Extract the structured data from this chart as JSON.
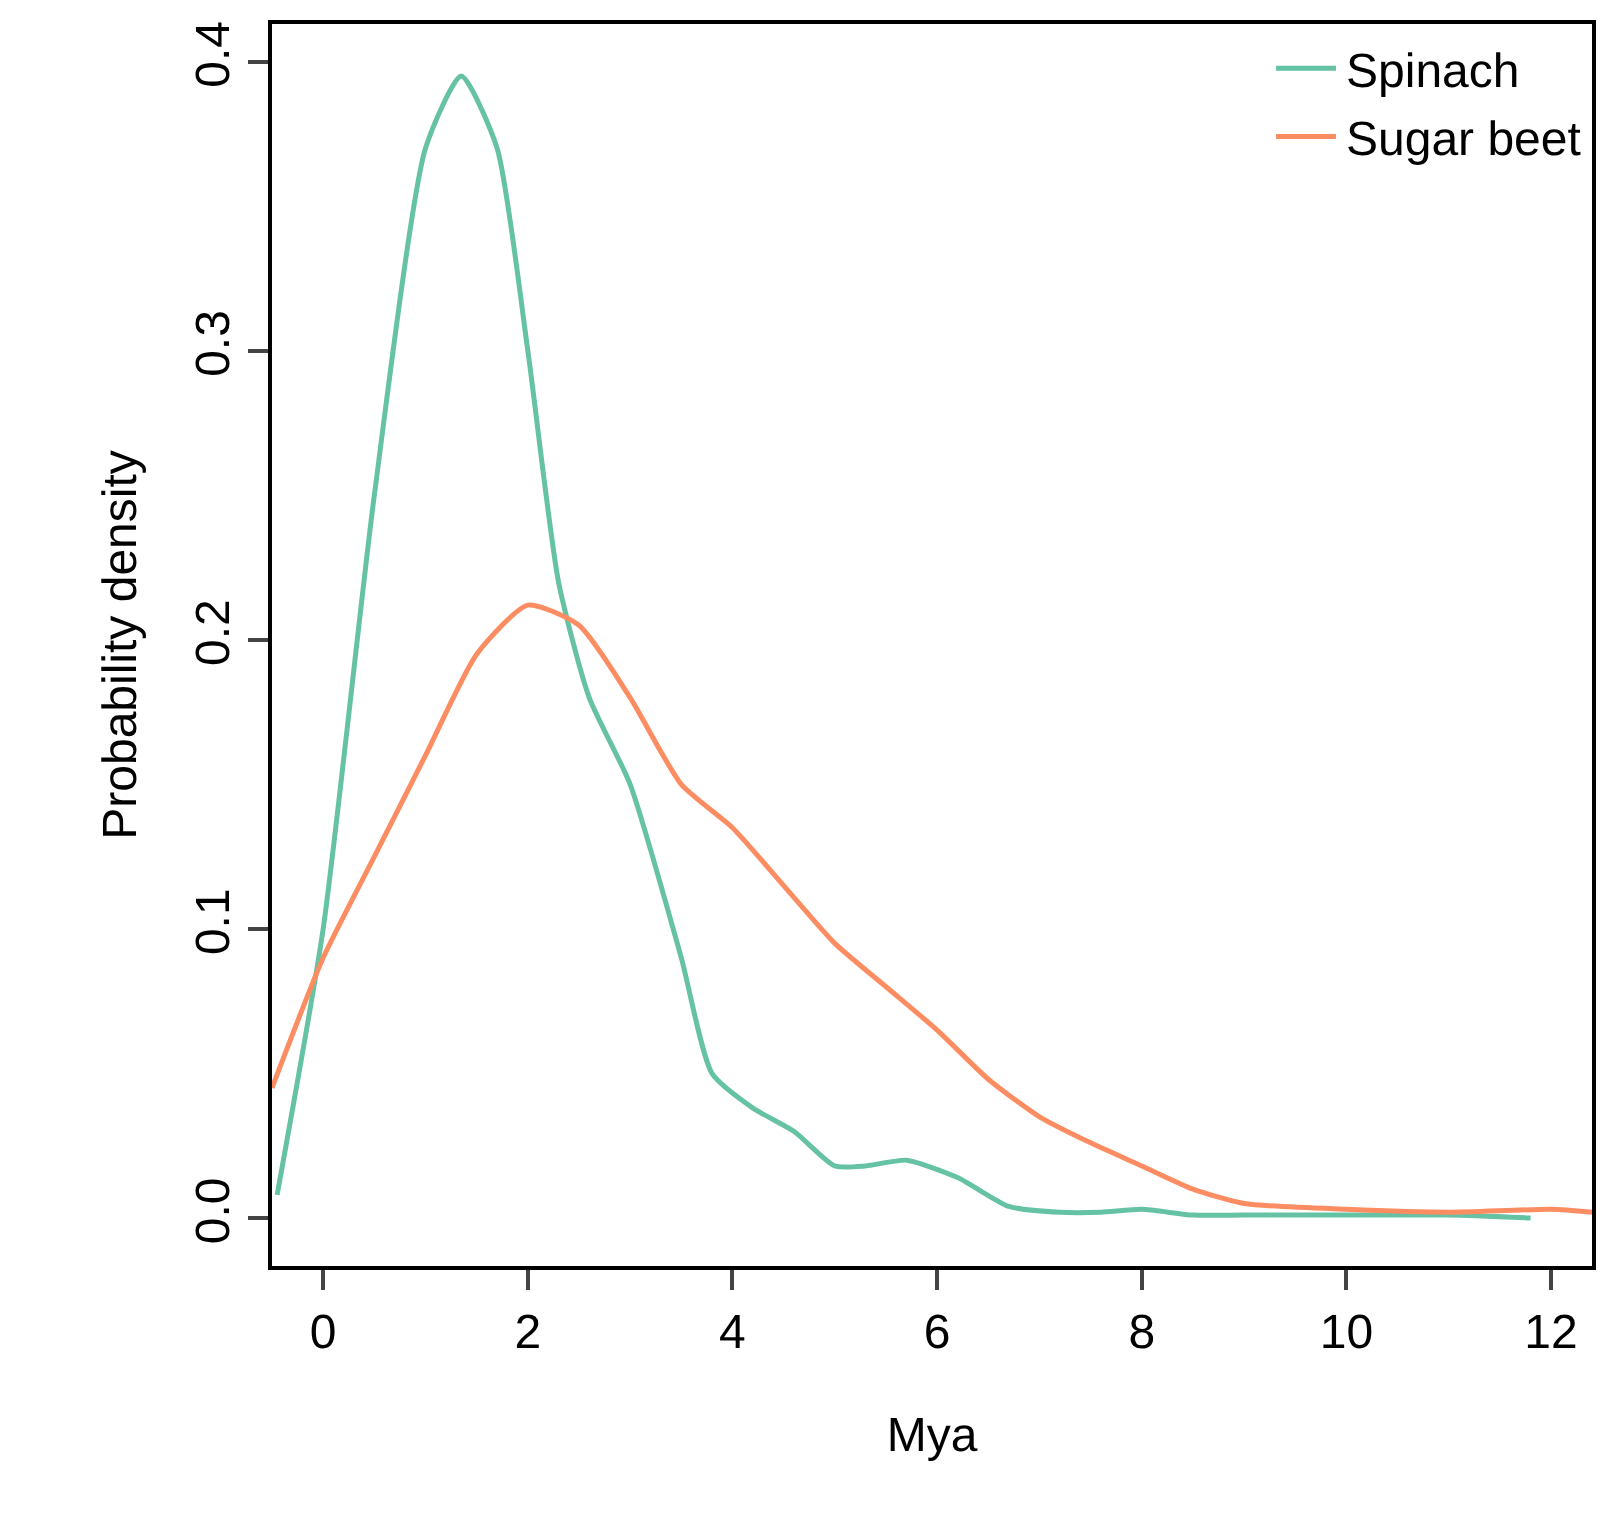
{
  "chart_data": {
    "type": "line",
    "xlabel": "Mya",
    "ylabel": "Probability density",
    "xlim": [
      -0.5,
      12.4
    ],
    "ylim": [
      -0.0166,
      0.413
    ],
    "xticks": [
      0,
      2,
      4,
      6,
      8,
      10,
      12
    ],
    "yticks": [
      {
        "value": 0,
        "label": "0.0"
      },
      0.1,
      0.2,
      0.3,
      0.4
    ],
    "grid": false,
    "legend": "top right",
    "marker": "none",
    "line_style": "solid",
    "series": [
      {
        "name": "Spinach",
        "color": "#66c2a5",
        "x": [
          -0.45,
          0,
          0.5,
          1.0,
          1.35,
          1.7,
          2.0,
          2.3,
          2.6,
          3.0,
          3.5,
          3.8,
          4.2,
          4.6,
          5.0,
          5.3,
          5.7,
          6.2,
          6.7,
          7.2,
          7.6,
          8.0,
          8.5,
          9.0,
          10.0,
          11.0,
          11.8
        ],
        "values": [
          0.008,
          0.1,
          0.25,
          0.37,
          0.395,
          0.37,
          0.3,
          0.22,
          0.18,
          0.15,
          0.09,
          0.05,
          0.038,
          0.03,
          0.018,
          0.018,
          0.02,
          0.014,
          0.004,
          0.002,
          0.002,
          0.003,
          0.001,
          0.001,
          0.001,
          0.001,
          0.0
        ]
      },
      {
        "name": "Sugar beet",
        "color": "#fc8d62",
        "x": [
          -0.5,
          0,
          0.5,
          1.0,
          1.5,
          2.0,
          2.5,
          3.0,
          3.5,
          4.0,
          4.5,
          5.0,
          5.5,
          6.0,
          6.5,
          7.0,
          7.5,
          8.0,
          8.5,
          9.0,
          10.0,
          11.0,
          12.0,
          12.4
        ],
        "values": [
          0.045,
          0.09,
          0.125,
          0.16,
          0.195,
          0.212,
          0.205,
          0.18,
          0.15,
          0.135,
          0.115,
          0.095,
          0.08,
          0.065,
          0.048,
          0.035,
          0.026,
          0.018,
          0.01,
          0.005,
          0.003,
          0.002,
          0.003,
          0.002
        ]
      }
    ]
  }
}
